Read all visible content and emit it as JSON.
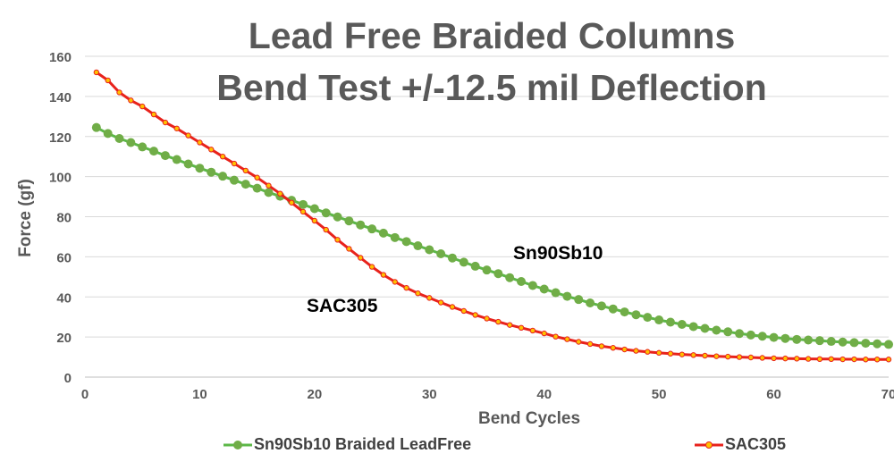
{
  "chart_data": {
    "type": "line",
    "title": "Lead Free Braided Columns",
    "subtitle": "Bend Test +/-12.5 mil Deflection",
    "xlabel": "Bend Cycles",
    "ylabel": "Force (gf)",
    "xlim": [
      0,
      70
    ],
    "ylim": [
      0,
      160
    ],
    "xticks": [
      0,
      10,
      20,
      30,
      40,
      50,
      60,
      70
    ],
    "yticks": [
      0,
      20,
      40,
      60,
      80,
      100,
      120,
      140,
      160
    ],
    "grid": "horizontal",
    "legend_position": "bottom",
    "x": [
      1,
      2,
      3,
      4,
      5,
      6,
      7,
      8,
      9,
      10,
      11,
      12,
      13,
      14,
      15,
      16,
      17,
      18,
      19,
      20,
      21,
      22,
      23,
      24,
      25,
      26,
      27,
      28,
      29,
      30,
      31,
      32,
      33,
      34,
      35,
      36,
      37,
      38,
      39,
      40,
      41,
      42,
      43,
      44,
      45,
      46,
      47,
      48,
      49,
      50,
      51,
      52,
      53,
      54,
      55,
      56,
      57,
      58,
      59,
      60,
      61,
      62,
      63,
      64,
      65,
      66,
      67,
      68,
      69,
      70
    ],
    "series": [
      {
        "name": "Sn90Sb10 Braided LeadFree",
        "color": "#5cb848",
        "marker_color": "#70ad47",
        "annotation": "Sn90Sb10",
        "values": [
          124.5,
          121.5,
          119,
          117,
          114.8,
          112.7,
          110.5,
          108.5,
          106.3,
          104.2,
          102.2,
          100.2,
          98.2,
          96.2,
          94.2,
          92.1,
          90.2,
          88.2,
          86.1,
          84,
          81.9,
          79.9,
          77.9,
          75.9,
          73.9,
          71.8,
          69.6,
          67.6,
          65.5,
          63.5,
          61.5,
          59.4,
          57.3,
          55.3,
          53.4,
          51.6,
          49.6,
          47.7,
          45.7,
          43.9,
          42.1,
          40.3,
          38.7,
          37,
          35.5,
          34,
          32.5,
          31.1,
          29.8,
          28.5,
          27.4,
          26.3,
          25.2,
          24.3,
          23.4,
          22.6,
          21.7,
          21,
          20.4,
          19.8,
          19.3,
          18.8,
          18.5,
          18.2,
          17.8,
          17.5,
          17.2,
          16.9,
          16.6,
          16.3
        ]
      },
      {
        "name": "SAC305",
        "color": "#e8221c",
        "marker_color": "#ffc000",
        "annotation": "SAC305",
        "values": [
          152,
          148,
          142,
          138,
          135,
          131,
          127,
          124,
          120.5,
          117,
          113.5,
          110,
          106.5,
          103,
          99.5,
          95.5,
          91.5,
          87,
          82.5,
          78,
          73.5,
          68.5,
          64,
          59.5,
          55,
          51,
          47.5,
          44.5,
          41.8,
          39.5,
          37.2,
          35,
          33,
          31,
          29.2,
          27.6,
          26,
          24.6,
          23.2,
          21.8,
          20.2,
          18.9,
          17.6,
          16.5,
          15.4,
          14.6,
          13.8,
          13.1,
          12.6,
          12.1,
          11.7,
          11.3,
          11,
          10.7,
          10.4,
          10.2,
          10,
          9.8,
          9.6,
          9.4,
          9.3,
          9.2,
          9.1,
          9,
          9,
          8.9,
          8.9,
          8.8,
          8.8,
          8.8
        ]
      }
    ]
  }
}
